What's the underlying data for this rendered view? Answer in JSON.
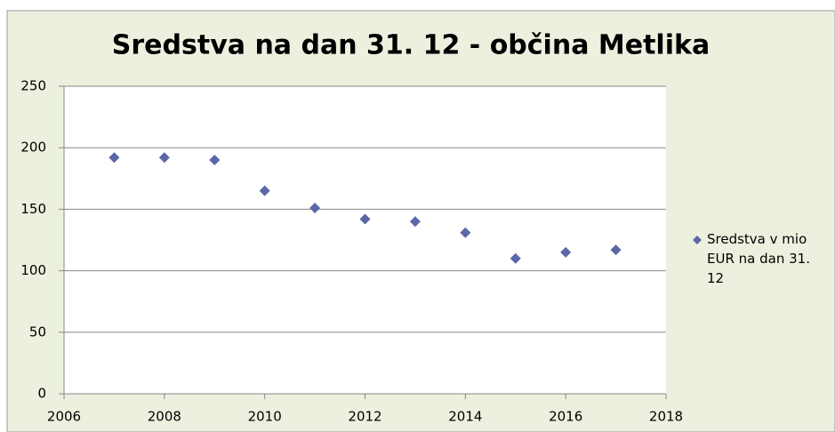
{
  "chart_data": {
    "type": "scatter",
    "title": "Sredstva na dan 31. 12 - občina Metlika",
    "series": [
      {
        "name": "Sredstva v mio EUR na dan 31. 12",
        "color": "#5b67a8",
        "x": [
          2007,
          2008,
          2009,
          2010,
          2011,
          2012,
          2013,
          2014,
          2015,
          2016,
          2017
        ],
        "values": [
          192,
          192,
          190,
          165,
          151,
          142,
          140,
          131,
          110,
          115,
          117
        ]
      }
    ],
    "xlim": [
      2006,
      2018
    ],
    "xticks": [
      2006,
      2008,
      2010,
      2012,
      2014,
      2016,
      2018
    ],
    "ylim": [
      0,
      250
    ],
    "yticks": [
      0,
      50,
      100,
      150,
      200,
      250
    ],
    "grid": true,
    "legend": "right"
  }
}
